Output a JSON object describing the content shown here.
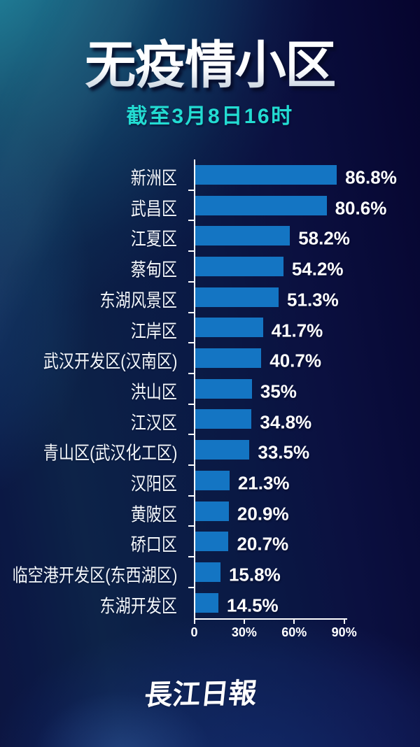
{
  "page": {
    "background_colors": {
      "top_left_teal": "#1a708c",
      "top_right_navy": "#06042e",
      "center_navy": "#0b1b47",
      "bottom_left_glow": "#1c3a66"
    }
  },
  "header": {
    "title": "无疫情小区",
    "subtitle": "截至3月8日16时",
    "subtitle_color": "#23dcd2"
  },
  "chart_data": {
    "type": "bar",
    "orientation": "horizontal",
    "title": "无疫情小区",
    "subtitle": "截至3月8日16时",
    "categories": [
      "新洲区",
      "武昌区",
      "江夏区",
      "蔡甸区",
      "东湖风景区",
      "江岸区",
      "武汉开发区(汉南区)",
      "洪山区",
      "江汉区",
      "青山区(武汉化工区)",
      "汉阳区",
      "黄陂区",
      "硚口区",
      "临空港开发区(东西湖区)",
      "东湖开发区"
    ],
    "values": [
      86.8,
      80.6,
      58.2,
      54.2,
      51.3,
      41.7,
      40.7,
      35,
      34.8,
      33.5,
      21.3,
      20.9,
      20.7,
      15.8,
      14.5
    ],
    "value_labels": [
      "86.8%",
      "80.6%",
      "58.2%",
      "54.2%",
      "51.3%",
      "41.7%",
      "40.7%",
      "35%",
      "34.8%",
      "33.5%",
      "21.3%",
      "20.9%",
      "20.7%",
      "15.8%",
      "14.5%"
    ],
    "x_ticks": [
      {
        "value": 0,
        "label": "0"
      },
      {
        "value": 30,
        "label": "30%"
      },
      {
        "value": 60,
        "label": "60%"
      },
      {
        "value": 90,
        "label": "90%"
      }
    ],
    "xlim": [
      0,
      92
    ],
    "bar_color": "#1475c3",
    "axis_color": "#ffffff",
    "grid": false,
    "legend": false
  },
  "footer": {
    "logo_text": "長江日報"
  }
}
